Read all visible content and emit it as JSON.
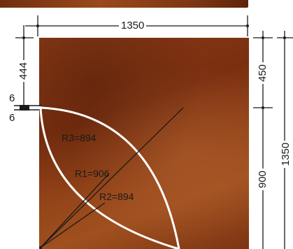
{
  "dimensions": {
    "top_width": "1350",
    "left_offset": "444",
    "left_gap_a": "6",
    "left_gap_b": "6",
    "right_top": "450",
    "right_bottom": "900",
    "right_total": "1350"
  },
  "radii": {
    "r1": "R1=906",
    "r2": "R2=894",
    "r3": "R3=894"
  },
  "colors": {
    "panel": "#8a3a16",
    "cut_line": "#ffffff",
    "dimension_line": "#1a1a1a"
  }
}
